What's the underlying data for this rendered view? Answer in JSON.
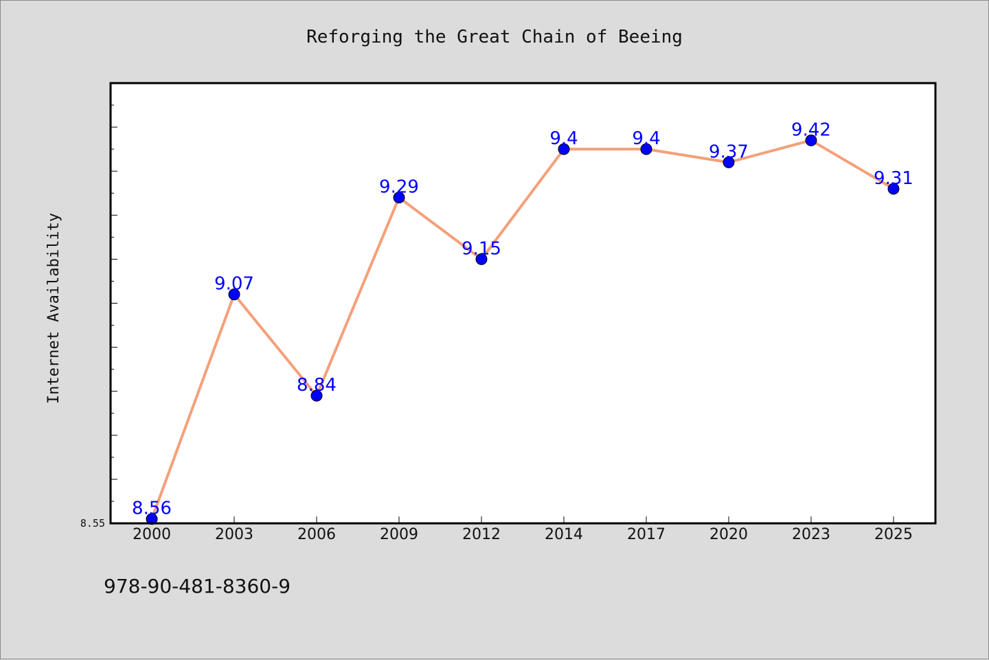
{
  "chart_data": {
    "type": "line",
    "title": "Reforging the Great Chain of Beeing",
    "xlabel": "",
    "ylabel": "Internet Availability",
    "categories": [
      "2000",
      "2003",
      "2006",
      "2009",
      "2012",
      "2014",
      "2017",
      "2020",
      "2023",
      "2025"
    ],
    "series": [
      {
        "values": [
          8.56,
          9.07,
          8.84,
          9.29,
          9.15,
          9.4,
          9.4,
          9.37,
          9.42,
          9.31
        ],
        "labels": [
          "8.56",
          "9.07",
          "8.84",
          "9.29",
          "9.15",
          "9.4",
          "9.4",
          "9.37",
          "9.42",
          "9.31"
        ],
        "line_color": "#f4a07a",
        "marker_color": "#0000ff"
      }
    ],
    "ylim": [
      8.55,
      9.55
    ],
    "yticks_labeled": [
      "8.55"
    ],
    "grid": false,
    "legend": "none",
    "footer_text": "978-90-481-8360-9"
  }
}
